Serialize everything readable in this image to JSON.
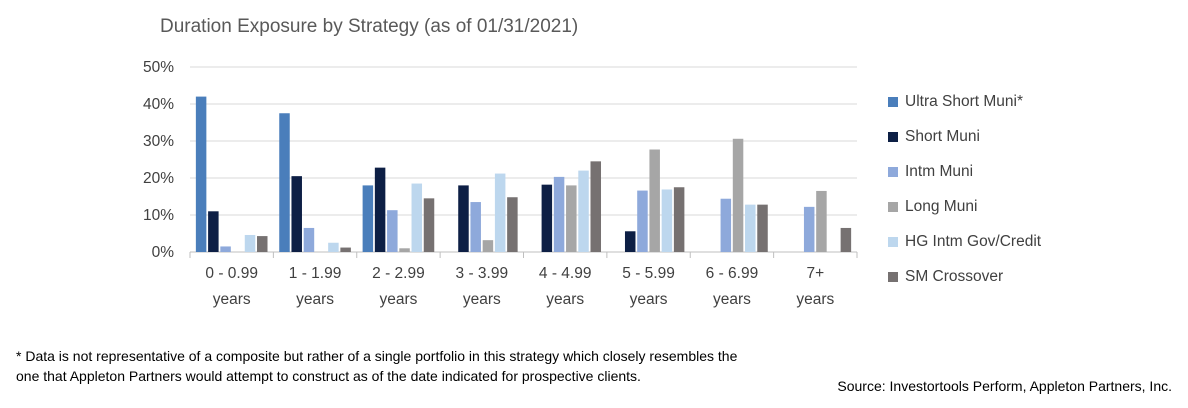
{
  "chart_data": {
    "type": "bar",
    "title": "Duration Exposure by Strategy (as of 01/31/2021)",
    "categories": [
      [
        "0 - 0.99",
        "years"
      ],
      [
        "1 - 1.99",
        "years"
      ],
      [
        "2 - 2.99",
        "years"
      ],
      [
        "3 - 3.99",
        "years"
      ],
      [
        "4 - 4.99",
        "years"
      ],
      [
        "5 - 5.99",
        "years"
      ],
      [
        "6 - 6.99",
        "years"
      ],
      [
        "7+",
        "years"
      ]
    ],
    "ylim": [
      0,
      50
    ],
    "yticks": [
      "0%",
      "10%",
      "20%",
      "30%",
      "40%",
      "50%"
    ],
    "grid": true,
    "legend_position": "right",
    "series": [
      {
        "name": "Ultra Short Muni*",
        "color": "#4a7ebb",
        "values": [
          42,
          37.5,
          18,
          0,
          0,
          0,
          0,
          0
        ]
      },
      {
        "name": "Short Muni",
        "color": "#0d1f45",
        "values": [
          11,
          20.5,
          22.8,
          18,
          18.2,
          5.6,
          0,
          0
        ]
      },
      {
        "name": "Intm Muni",
        "color": "#8ea9db",
        "values": [
          1.5,
          6.5,
          11.3,
          13.5,
          20.3,
          16.6,
          14.4,
          12.2
        ]
      },
      {
        "name": "Long Muni",
        "color": "#a6a6a6",
        "values": [
          0,
          0,
          1,
          3.2,
          18,
          27.7,
          30.6,
          16.5
        ]
      },
      {
        "name": "HG Intm Gov/Credit",
        "color": "#bdd7ee",
        "values": [
          4.6,
          2.5,
          18.5,
          21.2,
          22,
          16.9,
          12.8,
          0
        ]
      },
      {
        "name": "SM Crossover",
        "color": "#767171",
        "values": [
          4.3,
          1.2,
          14.5,
          14.8,
          24.5,
          17.5,
          12.8,
          6.5
        ]
      }
    ]
  },
  "footnote": {
    "line1": "* Data is not representative of a composite but rather of a single portfolio in this strategy which closely resembles the",
    "line2": "one that Appleton Partners would attempt to construct as of the date indicated for prospective clients."
  },
  "source": "Source: Investortools Perform, Appleton Partners, Inc."
}
